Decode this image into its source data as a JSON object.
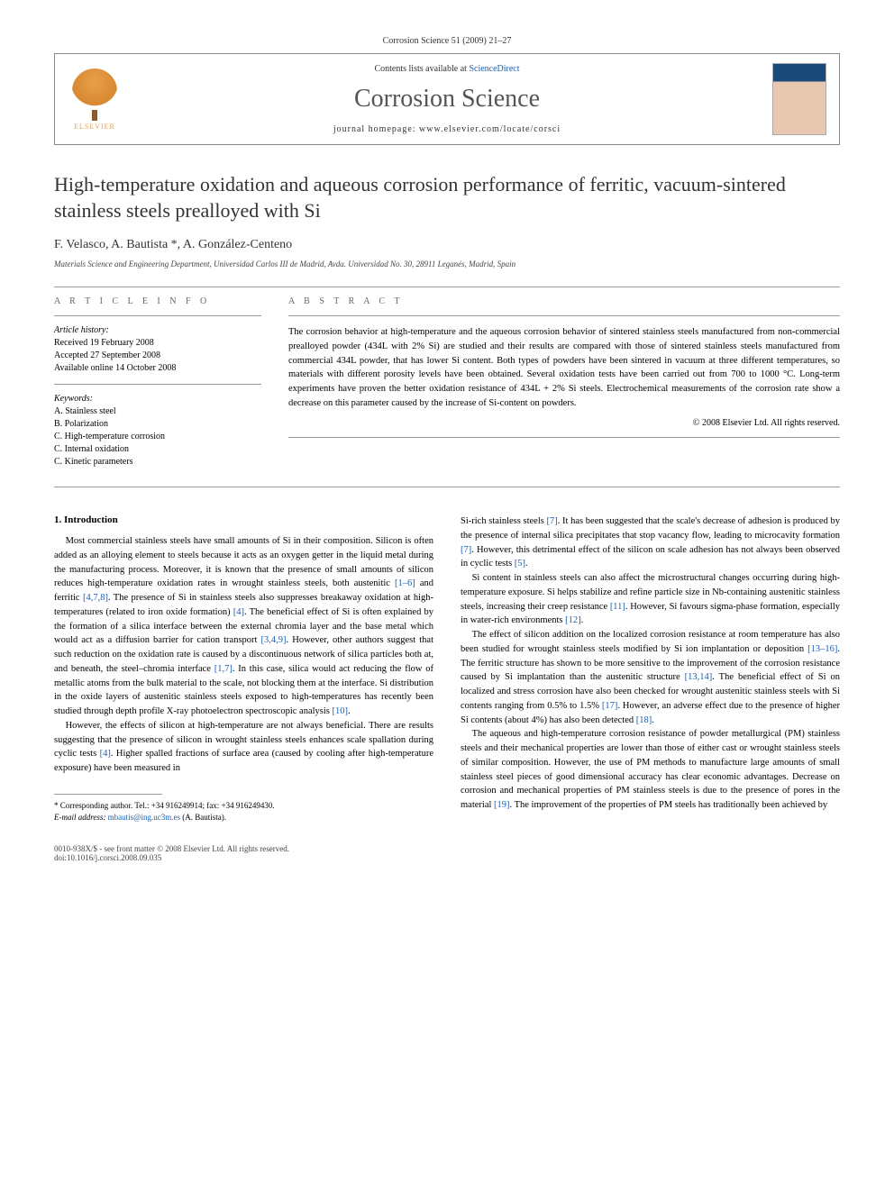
{
  "pageHeader": "Corrosion Science 51 (2009) 21–27",
  "headerBox": {
    "elsevierLabel": "ELSEVIER",
    "contentsPrefix": "Contents lists available at ",
    "contentsLink": "ScienceDirect",
    "journalName": "Corrosion Science",
    "homepageLabel": "journal homepage: www.elsevier.com/locate/corsci"
  },
  "title": "High-temperature oxidation and aqueous corrosion performance of ferritic, vacuum-sintered stainless steels prealloyed with Si",
  "authors": "F. Velasco, A. Bautista *, A. González-Centeno",
  "affiliation": "Materials Science and Engineering Department, Universidad Carlos III de Madrid, Avda. Universidad No. 30, 28911 Leganés, Madrid, Spain",
  "articleInfo": {
    "head": "A R T I C L E   I N F O",
    "historyHead": "Article history:",
    "received": "Received 19 February 2008",
    "accepted": "Accepted 27 September 2008",
    "online": "Available online 14 October 2008",
    "keywordsHead": "Keywords:",
    "keywords": [
      "A. Stainless steel",
      "B. Polarization",
      "C. High-temperature corrosion",
      "C. Internal oxidation",
      "C. Kinetic parameters"
    ]
  },
  "abstract": {
    "head": "A B S T R A C T",
    "text": "The corrosion behavior at high-temperature and the aqueous corrosion behavior of sintered stainless steels manufactured from non-commercial prealloyed powder (434L with 2% Si) are studied and their results are compared with those of sintered stainless steels manufactured from commercial 434L powder, that has lower Si content. Both types of powders have been sintered in vacuum at three different temperatures, so materials with different porosity levels have been obtained. Several oxidation tests have been carried out from 700 to 1000 °C. Long-term experiments have proven the better oxidation resistance of 434L + 2% Si steels. Electrochemical measurements of the corrosion rate show a decrease on this parameter caused by the increase of Si-content on powders.",
    "copyright": "© 2008 Elsevier Ltd. All rights reserved."
  },
  "sectionHead": "1. Introduction",
  "leftParas": [
    "Most commercial stainless steels have small amounts of Si in their composition. Silicon is often added as an alloying element to steels because it acts as an oxygen getter in the liquid metal during the manufacturing process. Moreover, it is known that the presence of small amounts of silicon reduces high-temperature oxidation rates in wrought stainless steels, both austenitic [1–6] and ferritic [4,7,8]. The presence of Si in stainless steels also suppresses breakaway oxidation at high-temperatures (related to iron oxide formation) [4]. The beneficial effect of Si is often explained by the formation of a silica interface between the external chromia layer and the base metal which would act as a diffusion barrier for cation transport [3,4,9]. However, other authors suggest that such reduction on the oxidation rate is caused by a discontinuous network of silica particles both at, and beneath, the steel–chromia interface [1,7]. In this case, silica would act reducing the flow of metallic atoms from the bulk material to the scale, not blocking them at the interface. Si distribution in the oxide layers of austenitic stainless steels exposed to high-temperatures has recently been studied through depth profile X-ray photoelectron spectroscopic analysis [10].",
    "However, the effects of silicon at high-temperature are not always beneficial. There are results suggesting that the presence of silicon in wrought stainless steels enhances scale spallation during cyclic tests [4]. Higher spalled fractions of surface area (caused by cooling after high-temperature exposure) have been measured in"
  ],
  "rightParas": [
    "Si-rich stainless steels [7]. It has been suggested that the scale's decrease of adhesion is produced by the presence of internal silica precipitates that stop vacancy flow, leading to microcavity formation [7]. However, this detrimental effect of the silicon on scale adhesion has not always been observed in cyclic tests [5].",
    "Si content in stainless steels can also affect the microstructural changes occurring during high-temperature exposure. Si helps stabilize and refine particle size in Nb-containing austenitic stainless steels, increasing their creep resistance [11]. However, Si favours sigma-phase formation, especially in water-rich environments [12].",
    "The effect of silicon addition on the localized corrosion resistance at room temperature has also been studied for wrought stainless steels modified by Si ion implantation or deposition [13–16]. The ferritic structure has shown to be more sensitive to the improvement of the corrosion resistance caused by Si implantation than the austenitic structure [13,14]. The beneficial effect of Si on localized and stress corrosion have also been checked for wrought austenitic stainless steels with Si contents ranging from 0.5% to 1.5% [17]. However, an adverse effect due to the presence of higher Si contents (about 4%) has also been detected [18].",
    "The aqueous and high-temperature corrosion resistance of powder metallurgical (PM) stainless steels and their mechanical properties are lower than those of either cast or wrought stainless steels of similar composition. However, the use of PM methods to manufacture large amounts of small stainless steel pieces of good dimensional accuracy has clear economic advantages. Decrease on corrosion and mechanical properties of PM stainless steels is due to the presence of pores in the material [19]. The improvement of the properties of PM steels has traditionally been achieved by"
  ],
  "footnote": {
    "corresponding": "* Corresponding author. Tel.: +34 916249914; fax: +34 916249430.",
    "emailLabel": "E-mail address: ",
    "email": "mbautis@ing.uc3m.es",
    "emailSuffix": " (A. Bautista)."
  },
  "footer": {
    "left1": "0010-938X/$ - see front matter © 2008 Elsevier Ltd. All rights reserved.",
    "left2": "doi:10.1016/j.corsci.2008.09.035"
  }
}
